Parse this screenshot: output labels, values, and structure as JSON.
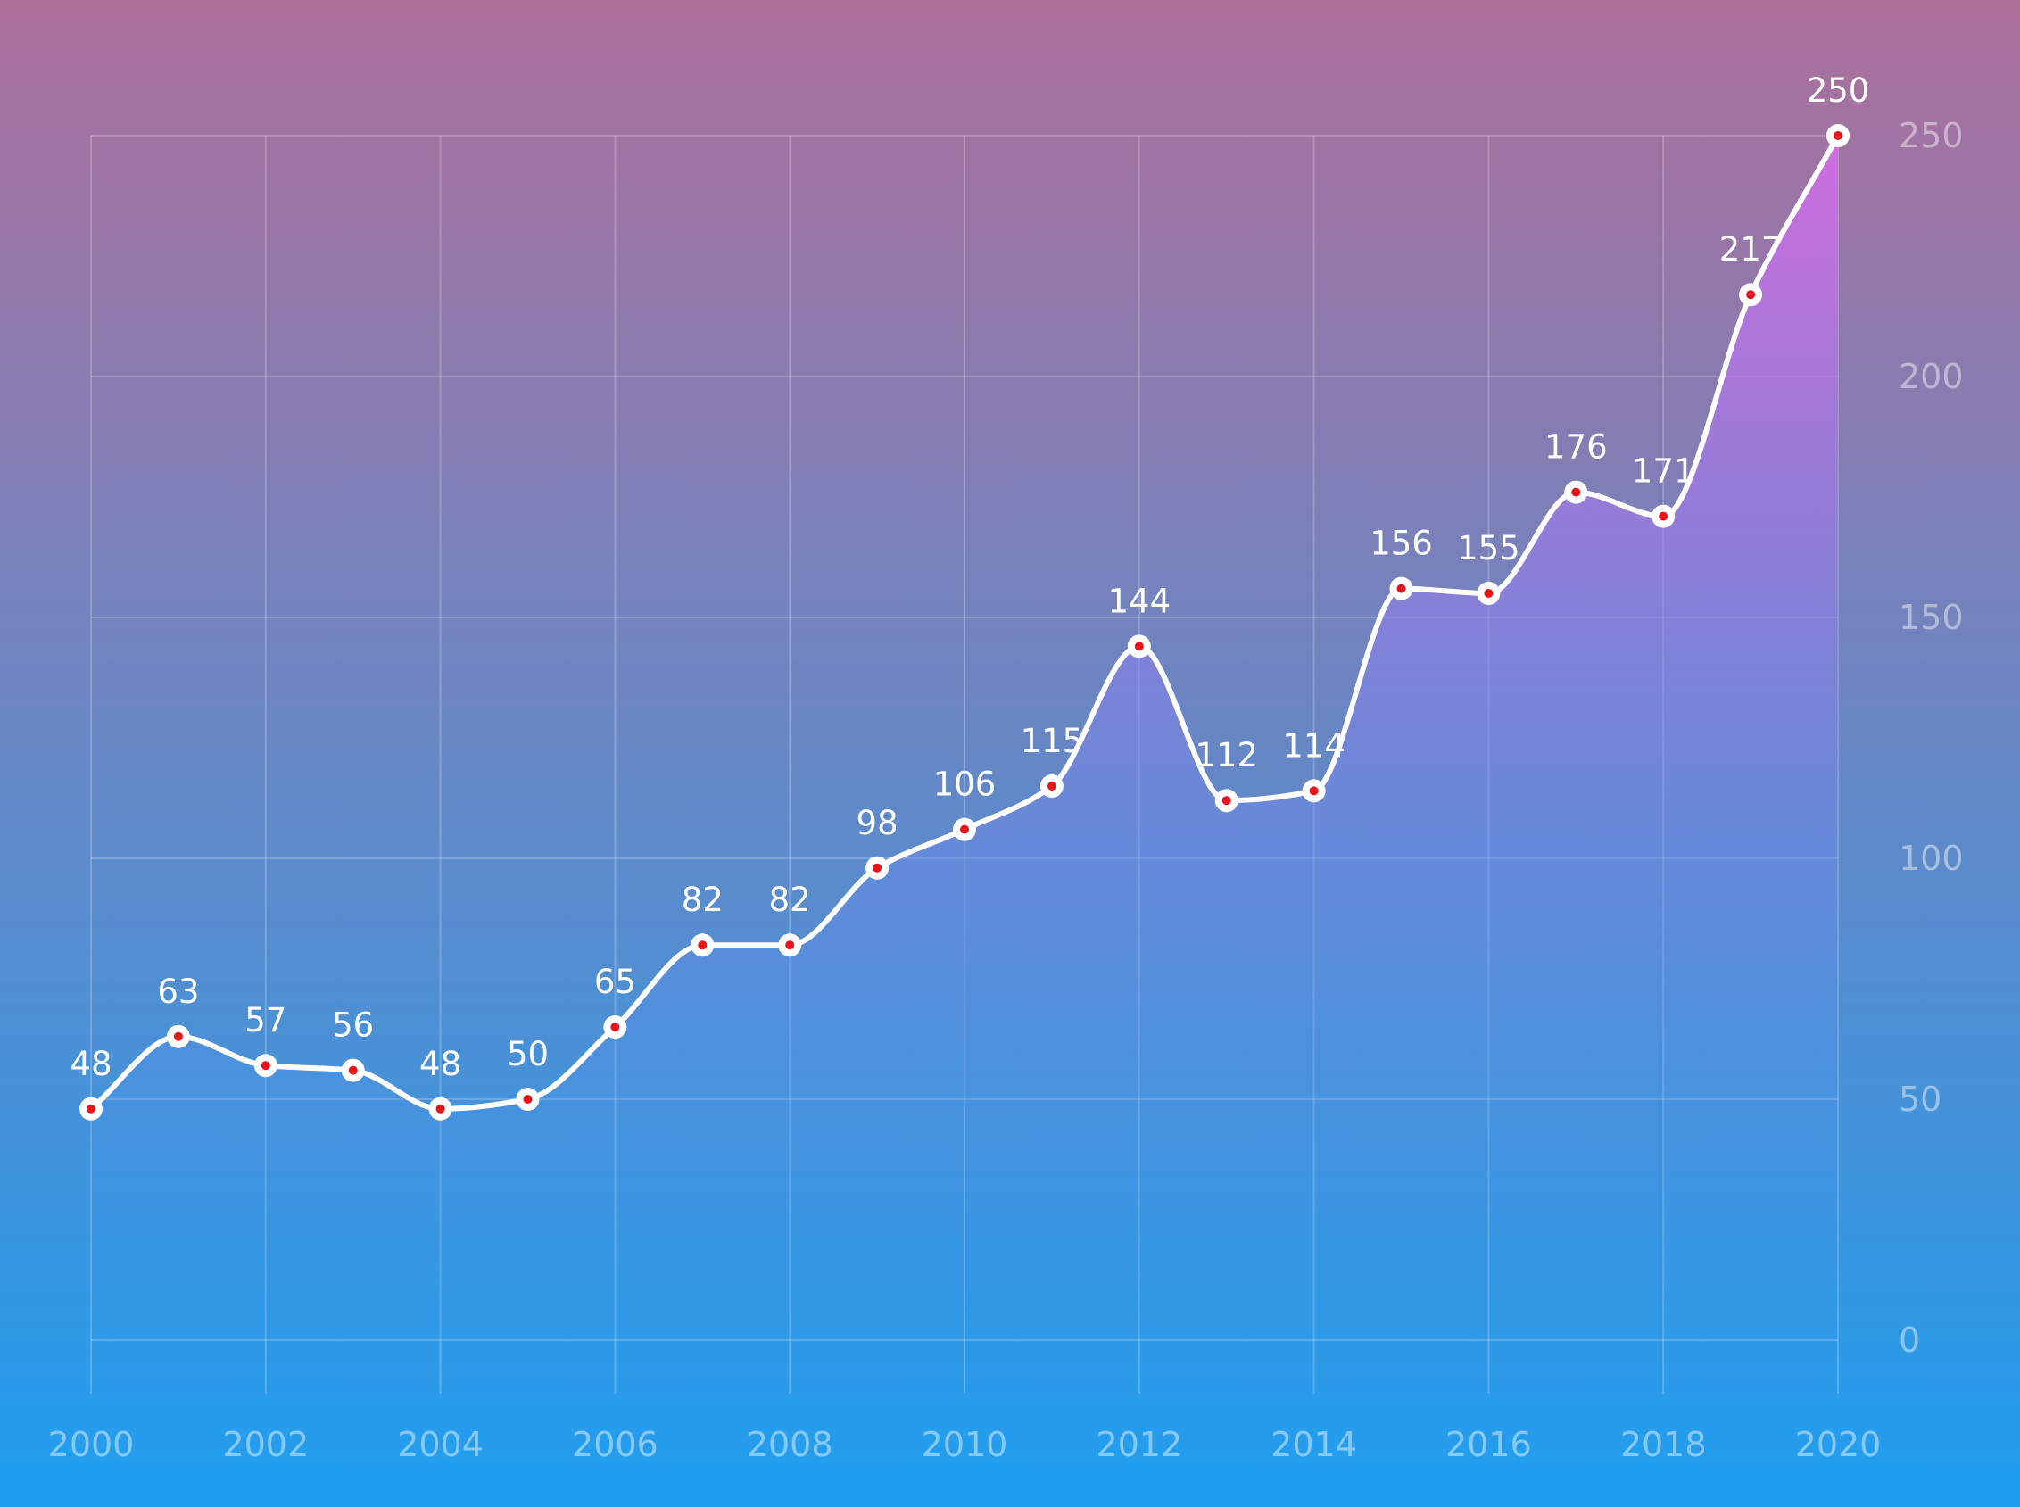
{
  "chart_data": {
    "type": "area",
    "x": [
      2000,
      2001,
      2002,
      2003,
      2004,
      2005,
      2006,
      2007,
      2008,
      2009,
      2010,
      2011,
      2012,
      2013,
      2014,
      2015,
      2016,
      2017,
      2018,
      2019,
      2020
    ],
    "series": [
      {
        "values": [
          48,
          63,
          57,
          56,
          48,
          50,
          65,
          82,
          82,
          98,
          106,
          115,
          144,
          112,
          114,
          156,
          155,
          176,
          171,
          217,
          250
        ]
      }
    ],
    "data_labels": [
      "48",
      "63",
      "57",
      "56",
      "48",
      "50",
      "65",
      "82",
      "82",
      "98",
      "106",
      "115",
      "144",
      "112",
      "114",
      "156",
      "155",
      "176",
      "171",
      "217",
      "250"
    ],
    "x_tick_labels": [
      "2000",
      "2002",
      "2004",
      "2006",
      "2008",
      "2010",
      "2012",
      "2014",
      "2016",
      "2018",
      "2020"
    ],
    "y_tick_labels": [
      "0",
      "50",
      "100",
      "150",
      "200",
      "250"
    ],
    "y_ticks": [
      0,
      50,
      100,
      150,
      200,
      250
    ],
    "xlim": [
      2000,
      2020
    ],
    "ylim": [
      0,
      250
    ],
    "y_axis_position": "right",
    "grid": true,
    "smooth": true,
    "colors": {
      "background_top": "#ad6f9a",
      "background_bottom": "#1f9ff0",
      "line": "#ffffff",
      "marker_fill": "#ffffff",
      "marker_dot": "#e8141c",
      "area_top": "#d46ce6",
      "area_bottom": "#2a9cf0"
    }
  }
}
